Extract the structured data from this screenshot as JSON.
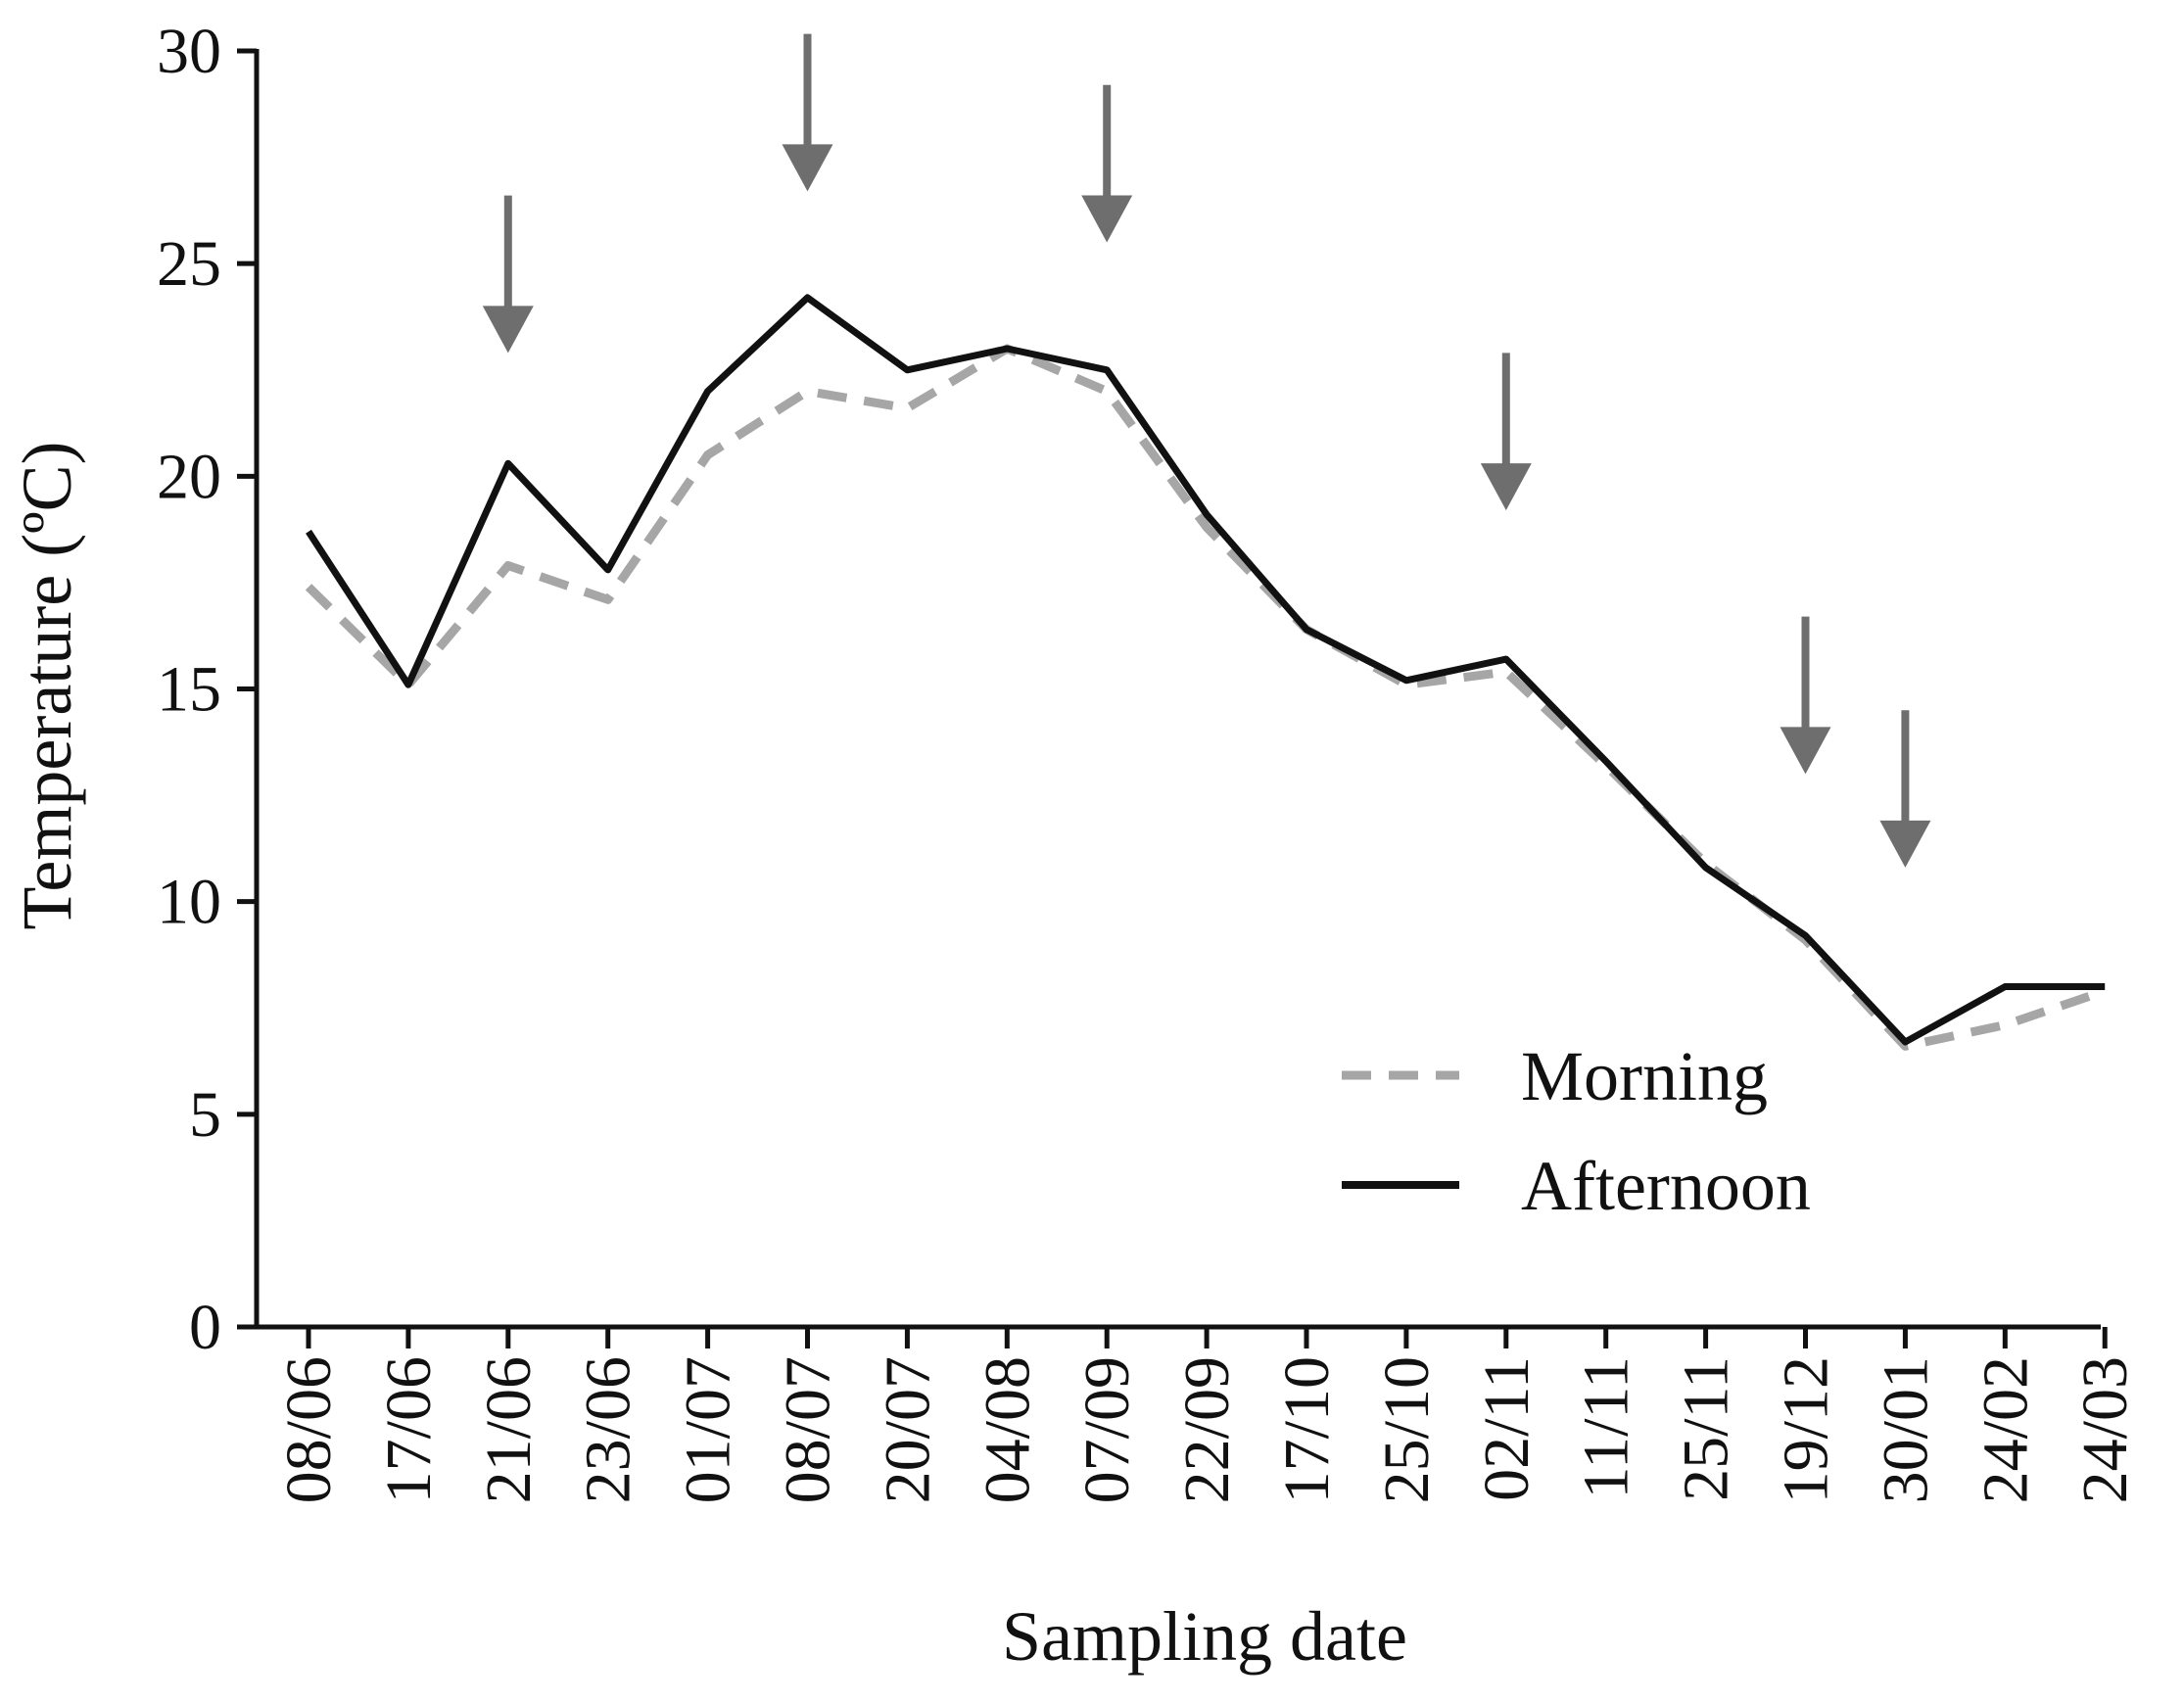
{
  "chart_data": {
    "type": "line",
    "title": "",
    "xlabel": "Sampling date",
    "ylabel": "Temperature (ºC)",
    "ylim": [
      0,
      30
    ],
    "yticks": [
      0,
      5,
      10,
      15,
      20,
      25,
      30
    ],
    "grid": false,
    "legend_position": "bottom-right",
    "categories": [
      "08/06",
      "17/06",
      "21/06",
      "23/06",
      "01/07",
      "08/07",
      "20/07",
      "04/08",
      "07/09",
      "22/09",
      "17/10",
      "25/10",
      "02/11",
      "11/11",
      "25/11",
      "19/12",
      "30/01",
      "24/02",
      "24/03"
    ],
    "series": [
      {
        "name": "Morning",
        "style": "dashed",
        "color": "#a6a6a6",
        "values": [
          17.4,
          15.1,
          17.9,
          17.1,
          20.5,
          22.0,
          21.6,
          23.0,
          22.0,
          18.8,
          16.4,
          15.1,
          15.4,
          13.2,
          10.9,
          9.1,
          6.6,
          7.1,
          7.9
        ]
      },
      {
        "name": "Afternoon",
        "style": "solid",
        "color": "#111111",
        "values": [
          18.7,
          15.1,
          20.3,
          17.8,
          22.0,
          24.2,
          22.5,
          23.0,
          22.5,
          19.1,
          16.4,
          15.2,
          15.7,
          13.3,
          10.8,
          9.2,
          6.7,
          8.0,
          8.0
        ]
      }
    ],
    "annotations": [
      {
        "type": "arrow",
        "category": "21/06",
        "tip_value": 22.9,
        "tail_value": 26.6
      },
      {
        "type": "arrow",
        "category": "08/07",
        "tip_value": 26.7,
        "tail_value": 30.4
      },
      {
        "type": "arrow",
        "category": "07/09",
        "tip_value": 25.5,
        "tail_value": 29.2
      },
      {
        "type": "arrow",
        "category": "02/11",
        "tip_value": 19.2,
        "tail_value": 22.9
      },
      {
        "type": "arrow",
        "category": "19/12",
        "tip_value": 13.0,
        "tail_value": 16.7
      },
      {
        "type": "arrow",
        "category": "30/01",
        "tip_value": 10.8,
        "tail_value": 14.5
      }
    ],
    "arrow_color": "#6e6e6e"
  }
}
